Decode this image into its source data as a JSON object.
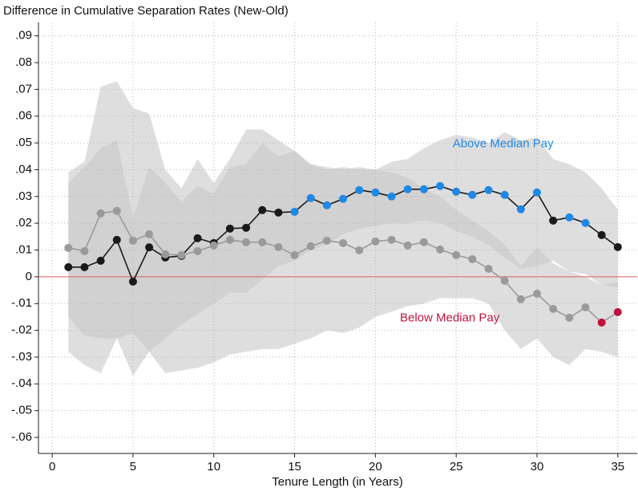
{
  "chart_data": {
    "type": "line",
    "title": "Difference in Cumulative Separation Rates (New-Old)",
    "x_label": "Tenure Length (in Years)",
    "x": [
      1,
      2,
      3,
      4,
      5,
      6,
      7,
      8,
      9,
      10,
      11,
      12,
      13,
      14,
      15,
      16,
      17,
      18,
      19,
      20,
      21,
      22,
      23,
      24,
      25,
      26,
      27,
      28,
      29,
      30,
      31,
      32,
      33,
      34,
      35
    ],
    "xlim": [
      -0.85,
      36.2
    ],
    "xticks": [
      0,
      5,
      10,
      15,
      20,
      25,
      30,
      35
    ],
    "ylim": [
      -0.066,
      0.095
    ],
    "yticks": [
      {
        "value": 0.09,
        "label": ".09"
      },
      {
        "value": 0.08,
        "label": ".08"
      },
      {
        "value": 0.07,
        "label": ".07"
      },
      {
        "value": 0.06,
        "label": ".06"
      },
      {
        "value": 0.05,
        "label": ".05"
      },
      {
        "value": 0.04,
        "label": ".04"
      },
      {
        "value": 0.03,
        "label": ".03"
      },
      {
        "value": 0.02,
        "label": ".02"
      },
      {
        "value": 0.01,
        "label": ".01"
      },
      0,
      {
        "value": -0.01,
        "label": "-.01"
      },
      {
        "value": -0.02,
        "label": "-.02"
      },
      {
        "value": -0.03,
        "label": "-.03"
      },
      {
        "value": -0.04,
        "label": "-.04"
      },
      {
        "value": -0.05,
        "label": "-.05"
      },
      {
        "value": -0.06,
        "label": "-.06"
      }
    ],
    "grid": true,
    "reference_line": {
      "value": 0,
      "color": "#e06060"
    },
    "band_color": "#c8c8c8",
    "series": [
      {
        "name": "Above Median Pay",
        "color": "#1a1a1a",
        "label_color": "#1e88e5",
        "values": [
          0.0036,
          0.0036,
          0.006,
          0.0138,
          -0.0018,
          0.011,
          0.0072,
          0.0078,
          0.0144,
          0.0126,
          0.018,
          0.0183,
          0.0249,
          0.024,
          0.0243,
          0.0294,
          0.0267,
          0.0291,
          0.0324,
          0.0315,
          0.03,
          0.0327,
          0.0327,
          0.0339,
          0.0318,
          0.0306,
          0.0324,
          0.0306,
          0.0252,
          0.0315,
          0.021,
          0.0222,
          0.0201,
          0.0156,
          0.0111
        ],
        "point_colors": [
          "#1a1a1a",
          "#1a1a1a",
          "#1a1a1a",
          "#1a1a1a",
          "#1a1a1a",
          "#1a1a1a",
          "#1a1a1a",
          "#1a1a1a",
          "#1a1a1a",
          "#1a1a1a",
          "#1a1a1a",
          "#1a1a1a",
          "#1a1a1a",
          "#1a1a1a",
          "#1e88e5",
          "#1e88e5",
          "#1e88e5",
          "#1e88e5",
          "#1e88e5",
          "#1e88e5",
          "#1e88e5",
          "#1e88e5",
          "#1e88e5",
          "#1e88e5",
          "#1e88e5",
          "#1e88e5",
          "#1e88e5",
          "#1e88e5",
          "#1e88e5",
          "#1e88e5",
          "#1a1a1a",
          "#1e88e5",
          "#1e88e5",
          "#1a1a1a",
          "#1a1a1a"
        ],
        "ci_upper": [
          0.035,
          0.041,
          0.048,
          0.051,
          0.022,
          0.041,
          0.035,
          0.028,
          0.034,
          0.031,
          0.041,
          0.042,
          0.05,
          0.045,
          0.047,
          0.042,
          0.04,
          0.041,
          0.04,
          0.04,
          0.043,
          0.044,
          0.048,
          0.051,
          0.053,
          0.052,
          0.05,
          0.054,
          0.051,
          0.052,
          0.044,
          0.042,
          0.039,
          0.033,
          0.025
        ],
        "ci_lower": [
          -0.015,
          -0.022,
          -0.023,
          -0.023,
          -0.021,
          -0.028,
          -0.023,
          -0.018,
          -0.014,
          -0.01,
          -0.006,
          -0.006,
          -0.001,
          0.004,
          0.006,
          0.01,
          0.012,
          0.016,
          0.018,
          0.019,
          0.02,
          0.02,
          0.021,
          0.02,
          0.017,
          0.015,
          0.012,
          0.007,
          0.003,
          0.004,
          0.006,
          0.002,
          0.001,
          -0.003,
          -0.004
        ]
      },
      {
        "name": "Below Median Pay",
        "color": "#9a9a9a",
        "label_color": "#c0143c",
        "values": [
          0.0108,
          0.0096,
          0.0237,
          0.0246,
          0.0135,
          0.0159,
          0.0084,
          0.0081,
          0.0096,
          0.0117,
          0.0138,
          0.0129,
          0.0129,
          0.0111,
          0.0081,
          0.0114,
          0.0135,
          0.0126,
          0.0099,
          0.0132,
          0.0138,
          0.0117,
          0.0129,
          0.0102,
          0.0081,
          0.0066,
          0.003,
          -0.0015,
          -0.0084,
          -0.0063,
          -0.012,
          -0.0153,
          -0.0114,
          -0.0171,
          -0.0132
        ],
        "point_colors": [
          "#9a9a9a",
          "#9a9a9a",
          "#9a9a9a",
          "#9a9a9a",
          "#9a9a9a",
          "#9a9a9a",
          "#9a9a9a",
          "#9a9a9a",
          "#9a9a9a",
          "#9a9a9a",
          "#9a9a9a",
          "#9a9a9a",
          "#9a9a9a",
          "#9a9a9a",
          "#9a9a9a",
          "#9a9a9a",
          "#9a9a9a",
          "#9a9a9a",
          "#9a9a9a",
          "#9a9a9a",
          "#9a9a9a",
          "#9a9a9a",
          "#9a9a9a",
          "#9a9a9a",
          "#9a9a9a",
          "#9a9a9a",
          "#9a9a9a",
          "#9a9a9a",
          "#9a9a9a",
          "#9a9a9a",
          "#9a9a9a",
          "#9a9a9a",
          "#9a9a9a",
          "#c0143c",
          "#c0143c"
        ],
        "ci_upper": [
          0.039,
          0.043,
          0.071,
          0.073,
          0.063,
          0.061,
          0.04,
          0.033,
          0.044,
          0.035,
          0.044,
          0.055,
          0.055,
          0.051,
          0.047,
          0.042,
          0.041,
          0.04,
          0.041,
          0.04,
          0.039,
          0.037,
          0.033,
          0.03,
          0.025,
          0.021,
          0.017,
          0.012,
          0.004,
          0.011,
          0.005,
          0.002,
          0,
          -0.003,
          -0.002
        ],
        "ci_lower": [
          -0.028,
          -0.033,
          -0.036,
          -0.023,
          -0.037,
          -0.028,
          -0.036,
          -0.035,
          -0.034,
          -0.032,
          -0.029,
          -0.028,
          -0.027,
          -0.027,
          -0.025,
          -0.023,
          -0.02,
          -0.021,
          -0.019,
          -0.015,
          -0.013,
          -0.011,
          -0.01,
          -0.008,
          -0.008,
          -0.008,
          -0.01,
          -0.02,
          -0.027,
          -0.023,
          -0.03,
          -0.033,
          -0.027,
          -0.028,
          -0.03
        ]
      }
    ]
  }
}
